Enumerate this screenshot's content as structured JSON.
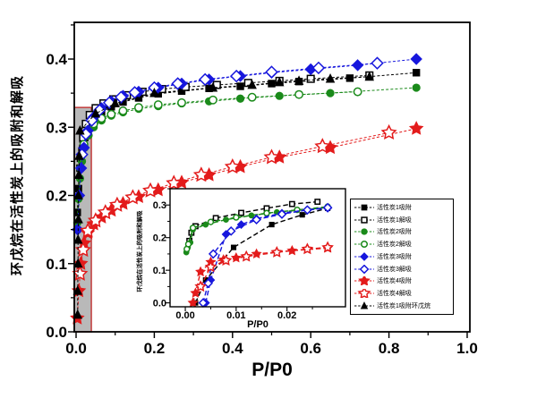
{
  "figure": {
    "background": "#ffffff",
    "axis_color": "#000000"
  },
  "chart_data": {
    "type": "line",
    "title": "",
    "xlabel": "P/P0",
    "ylabel": "环戊烷在活性炭上的吸附和解吸",
    "xlim": [
      -0.0046,
      1.0069
    ],
    "ylim": [
      0,
      0.4538
    ],
    "grid": false,
    "legend_position": "inside-right",
    "x_ticks": [
      {
        "v": 0.0,
        "label": "0.0"
      },
      {
        "v": 0.2,
        "label": "0.2"
      },
      {
        "v": 0.4,
        "label": "0.4"
      },
      {
        "v": 0.6,
        "label": "0.6"
      },
      {
        "v": 0.8,
        "label": "0.8"
      },
      {
        "v": 1.0,
        "label": "1.0"
      }
    ],
    "y_ticks": [
      {
        "v": 0.0,
        "label": "0.0"
      },
      {
        "v": 0.1,
        "label": "0.1"
      },
      {
        "v": 0.2,
        "label": "0.2"
      },
      {
        "v": 0.3,
        "label": "0.3"
      },
      {
        "v": 0.4,
        "label": "0.4"
      }
    ],
    "zoom_region": {
      "x0": -0.0046,
      "x1": 0.039,
      "y0": 0.0,
      "y1": 0.329,
      "fill": "#b9b9b9",
      "border": "#c23b3b"
    },
    "series": [
      {
        "id": "ac1-adsorption",
        "label": "活性炭1吸附",
        "color": "#000000",
        "marker": "square",
        "filled": true,
        "x": [
          0.003,
          0.006,
          0.01,
          0.015,
          0.022,
          0.032,
          0.045,
          0.065,
          0.09,
          0.12,
          0.16,
          0.21,
          0.27,
          0.34,
          0.42,
          0.5,
          0.57,
          0.7,
          0.87
        ],
        "y": [
          0.175,
          0.21,
          0.24,
          0.265,
          0.285,
          0.3,
          0.312,
          0.322,
          0.33,
          0.337,
          0.343,
          0.349,
          0.353,
          0.357,
          0.36,
          0.364,
          0.367,
          0.372,
          0.38
        ]
      },
      {
        "id": "ac1-desorption",
        "label": "活性炭1解吸",
        "color": "#000000",
        "marker": "square",
        "filled": false,
        "x": [
          0.012,
          0.018,
          0.025,
          0.035,
          0.05,
          0.07,
          0.095,
          0.13,
          0.17,
          0.22,
          0.28,
          0.36,
          0.44,
          0.52,
          0.6,
          0.75
        ],
        "y": [
          0.255,
          0.285,
          0.305,
          0.318,
          0.328,
          0.335,
          0.341,
          0.347,
          0.352,
          0.356,
          0.359,
          0.362,
          0.365,
          0.368,
          0.371,
          0.376
        ]
      },
      {
        "id": "ac2-adsorption",
        "label": "活性炭2吸附",
        "color": "#1a8a1a",
        "marker": "circle",
        "filled": true,
        "x": [
          0.003,
          0.006,
          0.01,
          0.015,
          0.022,
          0.032,
          0.045,
          0.065,
          0.09,
          0.12,
          0.16,
          0.21,
          0.27,
          0.34,
          0.42,
          0.52,
          0.65,
          0.87
        ],
        "y": [
          0.16,
          0.195,
          0.225,
          0.25,
          0.27,
          0.288,
          0.3,
          0.31,
          0.317,
          0.322,
          0.327,
          0.331,
          0.335,
          0.338,
          0.342,
          0.346,
          0.35,
          0.358
        ]
      },
      {
        "id": "ac2-desorption",
        "label": "活性炭2解吸",
        "color": "#1a8a1a",
        "marker": "circle",
        "filled": false,
        "x": [
          0.012,
          0.02,
          0.03,
          0.045,
          0.065,
          0.09,
          0.12,
          0.16,
          0.21,
          0.27,
          0.35,
          0.45,
          0.57,
          0.72
        ],
        "y": [
          0.24,
          0.275,
          0.295,
          0.305,
          0.313,
          0.319,
          0.324,
          0.329,
          0.333,
          0.336,
          0.34,
          0.344,
          0.348,
          0.352
        ]
      },
      {
        "id": "ac3-adsorption",
        "label": "活性炭3吸附",
        "color": "#1717dd",
        "marker": "diamond",
        "filled": true,
        "x": [
          0.004,
          0.008,
          0.013,
          0.02,
          0.03,
          0.045,
          0.065,
          0.09,
          0.12,
          0.16,
          0.21,
          0.27,
          0.34,
          0.42,
          0.5,
          0.6,
          0.72,
          0.87
        ],
        "y": [
          0.15,
          0.2,
          0.24,
          0.27,
          0.295,
          0.315,
          0.328,
          0.338,
          0.346,
          0.352,
          0.358,
          0.364,
          0.37,
          0.375,
          0.38,
          0.385,
          0.391,
          0.4
        ]
      },
      {
        "id": "ac3-desorption",
        "label": "活性炭3解吸",
        "color": "#1717dd",
        "marker": "diamond",
        "filled": false,
        "x": [
          0.015,
          0.025,
          0.04,
          0.06,
          0.085,
          0.115,
          0.15,
          0.2,
          0.26,
          0.33,
          0.41,
          0.5,
          0.62,
          0.77
        ],
        "y": [
          0.26,
          0.29,
          0.31,
          0.325,
          0.336,
          0.344,
          0.351,
          0.358,
          0.364,
          0.37,
          0.375,
          0.381,
          0.387,
          0.394
        ]
      },
      {
        "id": "ac4-adsorption",
        "label": "活性炭4吸附",
        "color": "#e31b1b",
        "marker": "star",
        "filled": true,
        "x": [
          0.003,
          0.007,
          0.012,
          0.02,
          0.03,
          0.045,
          0.065,
          0.09,
          0.12,
          0.16,
          0.21,
          0.27,
          0.34,
          0.42,
          0.52,
          0.65,
          0.87
        ],
        "y": [
          0.02,
          0.06,
          0.1,
          0.13,
          0.145,
          0.158,
          0.168,
          0.178,
          0.188,
          0.198,
          0.208,
          0.219,
          0.23,
          0.242,
          0.256,
          0.27,
          0.298
        ]
      },
      {
        "id": "ac4-desorption",
        "label": "活性炭4解吸",
        "color": "#e31b1b",
        "marker": "star",
        "filled": false,
        "x": [
          0.01,
          0.018,
          0.03,
          0.05,
          0.075,
          0.105,
          0.145,
          0.19,
          0.25,
          0.32,
          0.4,
          0.5,
          0.63,
          0.8
        ],
        "y": [
          0.085,
          0.12,
          0.148,
          0.163,
          0.175,
          0.186,
          0.197,
          0.207,
          0.218,
          0.23,
          0.242,
          0.256,
          0.272,
          0.292
        ]
      },
      {
        "id": "ac1-cyclopentane-adsorption",
        "label": "活性炭1吸附环戊烷",
        "color": "#000000",
        "marker": "triangle",
        "filled": true,
        "x": [
          0.004,
          0.004,
          0.005,
          0.005,
          0.006,
          0.006,
          0.007,
          0.008,
          0.01,
          0.05,
          0.1,
          0.2,
          0.35,
          0.45,
          0.52,
          0.57,
          0.65,
          0.75
        ],
        "y": [
          0.025,
          0.06,
          0.1,
          0.135,
          0.165,
          0.2,
          0.23,
          0.258,
          0.295,
          0.32,
          0.335,
          0.35,
          0.358,
          0.362,
          0.366,
          0.368,
          0.371,
          0.374
        ]
      }
    ],
    "inset": {
      "xlabel": "P/P0",
      "ylabel": "环戊烷在活性炭上的吸附和解吸",
      "xlim": [
        -0.003,
        0.0315
      ],
      "ylim": [
        -0.012,
        0.35
      ],
      "x_ticks": [
        {
          "v": 0.0,
          "label": "0.00"
        },
        {
          "v": 0.01,
          "label": "0.01"
        },
        {
          "v": 0.02,
          "label": "0.02"
        }
      ],
      "y_ticks": [
        {
          "v": 0.0,
          "label": "0.0"
        },
        {
          "v": 0.1,
          "label": "0.1"
        },
        {
          "v": 0.2,
          "label": "0.2"
        },
        {
          "v": 0.3,
          "label": "0.3"
        }
      ],
      "series": [
        {
          "id": "inset-ac1-adsorption",
          "color": "#000000",
          "marker": "square",
          "filled": true,
          "x": [
            0.002,
            0.004,
            0.0095,
            0.017,
            0.023,
            0.028
          ],
          "y": [
            0.0,
            0.07,
            0.17,
            0.24,
            0.27,
            0.29
          ]
        },
        {
          "id": "inset-ac1-desorption",
          "color": "#000000",
          "marker": "square",
          "filled": false,
          "x": [
            0.0008,
            0.0012,
            0.002,
            0.006,
            0.011,
            0.016,
            0.021,
            0.026
          ],
          "y": [
            0.19,
            0.215,
            0.235,
            0.26,
            0.276,
            0.29,
            0.303,
            0.31
          ]
        },
        {
          "id": "inset-ac2-adsorption",
          "color": "#1a8a1a",
          "marker": "circle",
          "filled": true,
          "x": [
            0.0002,
            0.0005,
            0.001,
            0.0015,
            0.004,
            0.008,
            0.013,
            0.018,
            0.024,
            0.028
          ],
          "y": [
            0.155,
            0.17,
            0.185,
            0.225,
            0.24,
            0.255,
            0.268,
            0.278,
            0.287,
            0.292
          ]
        },
        {
          "id": "inset-ac2-desorption",
          "color": "#1a8a1a",
          "marker": "circle",
          "filled": false,
          "x": [
            0.0003,
            0.0006,
            0.0015,
            0.005,
            0.01,
            0.016,
            0.022,
            0.028
          ],
          "y": [
            0.165,
            0.18,
            0.23,
            0.248,
            0.262,
            0.275,
            0.285,
            0.295
          ]
        },
        {
          "id": "inset-ac3-adsorption",
          "color": "#1717dd",
          "marker": "diamond",
          "filled": true,
          "x": [
            0.004,
            0.005,
            0.008,
            0.011,
            0.014,
            0.019,
            0.024,
            0.028
          ],
          "y": [
            0.0,
            0.07,
            0.21,
            0.24,
            0.258,
            0.275,
            0.285,
            0.29
          ]
        },
        {
          "id": "inset-ac3-desorption",
          "color": "#1717dd",
          "marker": "diamond",
          "filled": false,
          "x": [
            0.0035,
            0.0045,
            0.0055,
            0.009,
            0.014,
            0.019,
            0.024,
            0.028
          ],
          "y": [
            0.0,
            0.06,
            0.15,
            0.22,
            0.255,
            0.272,
            0.285,
            0.292
          ]
        },
        {
          "id": "inset-ac4-adsorption",
          "color": "#e31b1b",
          "marker": "star",
          "filled": true,
          "x": [
            0.0015,
            0.002,
            0.003,
            0.005,
            0.0075,
            0.01,
            0.014,
            0.021,
            0.028
          ],
          "y": [
            0.0,
            0.03,
            0.095,
            0.125,
            0.132,
            0.138,
            0.15,
            0.16,
            0.168
          ]
        },
        {
          "id": "inset-ac4-desorption",
          "color": "#e31b1b",
          "marker": "star",
          "filled": false,
          "x": [
            0.003,
            0.005,
            0.008,
            0.012,
            0.018,
            0.024,
            0.028
          ],
          "y": [
            0.05,
            0.11,
            0.13,
            0.142,
            0.155,
            0.165,
            0.17
          ]
        }
      ]
    }
  }
}
